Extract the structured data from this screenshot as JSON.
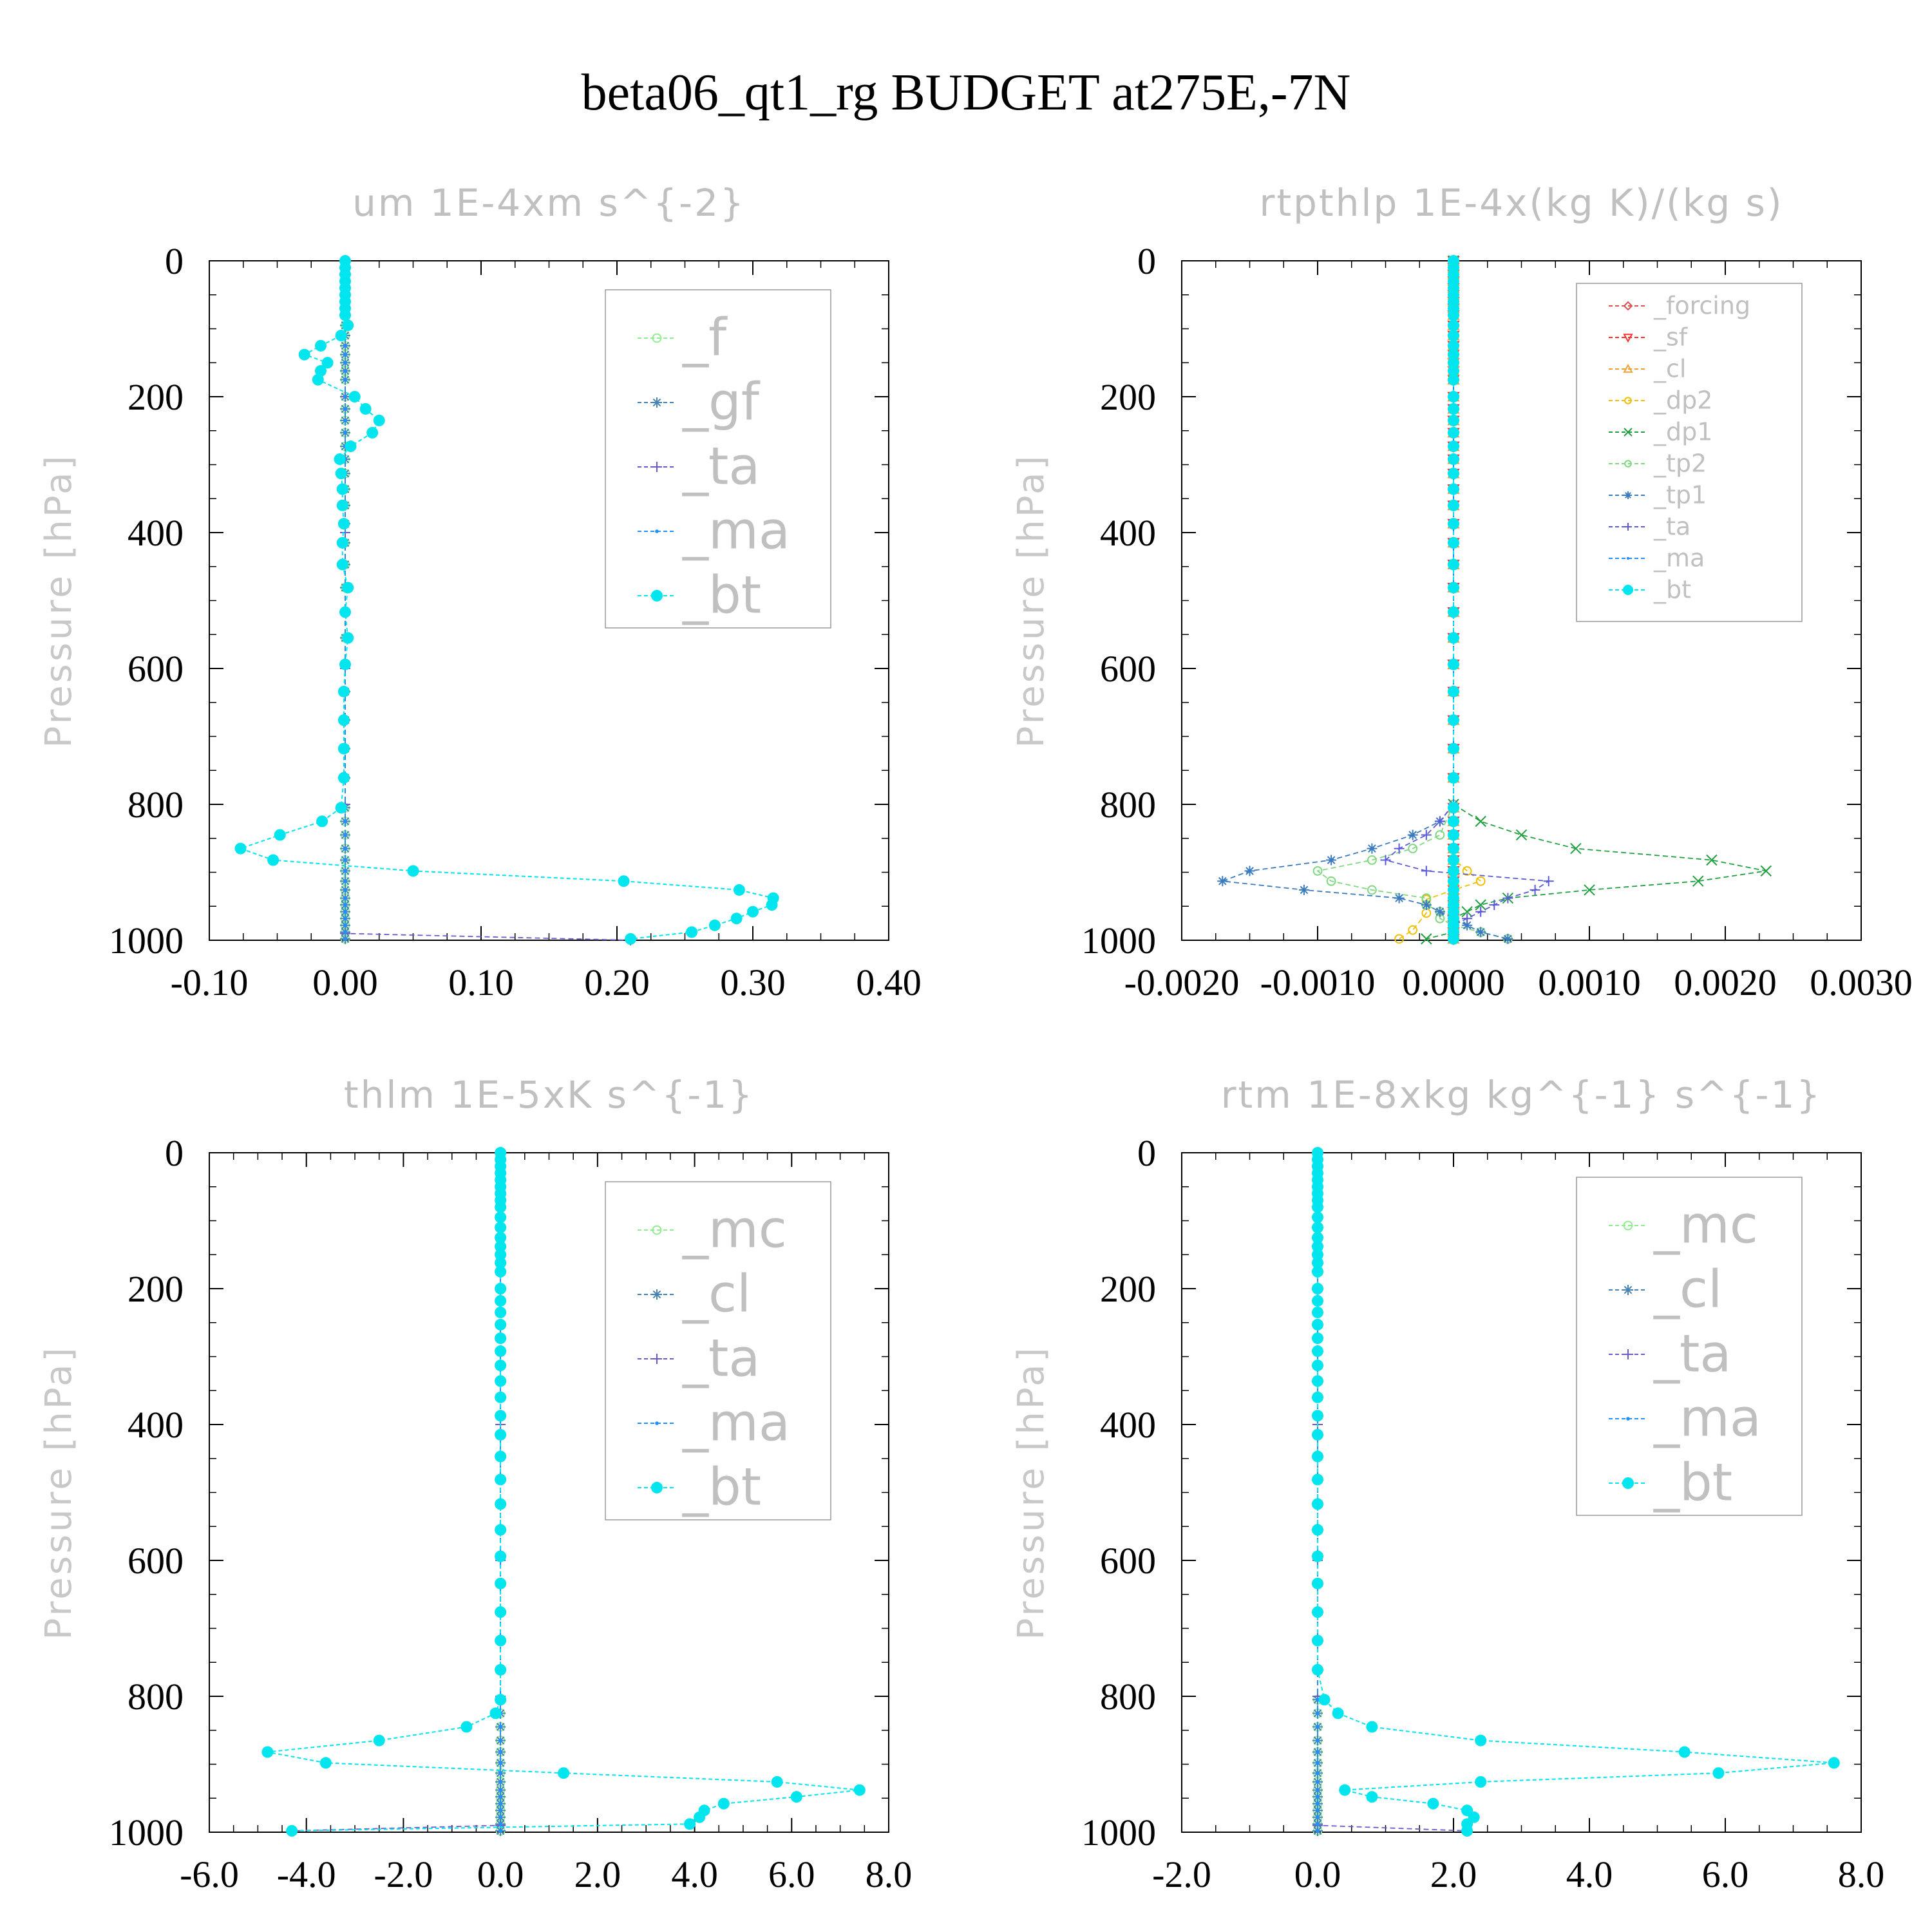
{
  "figure": {
    "title": "beta06_qt1_rg  BUDGET at275E,-7N"
  },
  "chart_data": [
    {
      "type": "line",
      "title": "um  1E-4xm s^{-2}",
      "ylabel": "Pressure [hPa]",
      "xlim": [
        -0.1,
        0.4
      ],
      "ylim": [
        1000,
        0
      ],
      "xticks": [
        "-0.10",
        "0.00",
        "0.10",
        "0.20",
        "0.30",
        "0.40"
      ],
      "yticks": [
        "0",
        "200",
        "400",
        "600",
        "800",
        "1000"
      ],
      "legend": "top-right",
      "series": [
        {
          "name": "_f",
          "color": "#90ee90",
          "marker": "circle",
          "y": [
            0,
            200,
            400,
            600,
            800,
            1000
          ],
          "x": [
            0,
            0,
            0,
            0,
            0,
            0
          ]
        },
        {
          "name": "_gf",
          "color": "#4682b4",
          "marker": "star",
          "y": [
            0,
            200,
            400,
            600,
            800,
            1000
          ],
          "x": [
            0,
            0,
            0,
            0,
            0,
            0
          ]
        },
        {
          "name": "_ta",
          "color": "#6a5acd",
          "marker": "plus",
          "y": [
            0,
            200,
            400,
            600,
            800,
            990,
            1000
          ],
          "x": [
            0,
            0,
            0,
            0,
            0,
            0.0,
            0.21
          ]
        },
        {
          "name": "_ma",
          "color": "#1e90ff",
          "marker": "dot",
          "y": [
            0,
            200,
            400,
            600,
            800,
            1000
          ],
          "x": [
            0,
            0,
            0,
            0,
            0,
            0
          ]
        },
        {
          "name": "_bt",
          "color": "#00e5ee",
          "marker": "bigdot",
          "y": [
            0,
            10,
            20,
            30,
            40,
            50,
            60,
            70,
            80,
            95,
            110,
            125,
            138,
            150,
            162,
            175,
            200,
            218,
            235,
            253,
            273,
            292,
            313,
            336,
            360,
            387,
            415,
            447,
            481,
            517,
            555,
            594,
            634,
            676,
            718,
            761,
            805,
            825,
            845,
            865,
            882,
            898,
            913,
            926,
            938,
            948,
            958,
            968,
            978,
            988,
            998
          ],
          "x": [
            0,
            0,
            0,
            0,
            0,
            0,
            0,
            0,
            0,
            0.002,
            -0.003,
            -0.018,
            -0.03,
            -0.013,
            -0.018,
            -0.02,
            0.007,
            0.015,
            0.025,
            0.02,
            0.004,
            -0.004,
            -0.003,
            -0.002,
            -0.002,
            -0.001,
            -0.002,
            -0.002,
            0.002,
            0.0,
            0.002,
            0.0,
            -0.001,
            -0.001,
            -0.001,
            -0.001,
            -0.003,
            -0.017,
            -0.048,
            -0.077,
            -0.053,
            0.05,
            0.205,
            0.29,
            0.315,
            0.314,
            0.3,
            0.288,
            0.272,
            0.255,
            0.21
          ]
        }
      ]
    },
    {
      "type": "line",
      "title": "rtpthlp  1E-4x(kg K)/(kg s)",
      "ylabel": "Pressure [hPa]",
      "xlim": [
        -0.002,
        0.003
      ],
      "ylim": [
        1000,
        0
      ],
      "xticks": [
        "-0.0020",
        "-0.0010",
        "0.0000",
        "0.0010",
        "0.0020",
        "0.0030"
      ],
      "yticks": [
        "0",
        "200",
        "400",
        "600",
        "800",
        "1000"
      ],
      "legend": "top-right",
      "series": [
        {
          "name": "_forcing",
          "color": "#e05050",
          "marker": "diamond",
          "y": [
            0,
            200,
            400,
            600,
            800,
            1000
          ],
          "x": [
            0,
            0,
            0,
            0,
            0,
            0
          ]
        },
        {
          "name": "_sf",
          "color": "#ff3030",
          "marker": "tridown",
          "y": [
            0,
            200,
            400,
            600,
            800,
            1000
          ],
          "x": [
            0,
            0,
            0,
            0,
            0,
            0
          ]
        },
        {
          "name": "_cl",
          "color": "#f0a030",
          "marker": "triangle",
          "y": [
            0,
            200,
            400,
            600,
            800,
            1000
          ],
          "x": [
            0,
            0,
            0,
            0,
            0,
            0
          ]
        },
        {
          "name": "_dp2",
          "color": "#f0c000",
          "marker": "circle",
          "y": [
            0,
            800,
            880,
            898,
            913,
            926,
            940,
            960,
            985,
            998
          ],
          "x": [
            0,
            0,
            0.0,
            0.0001,
            0.0002,
            0.0,
            -0.0002,
            -0.0002,
            -0.0003,
            -0.0004
          ]
        },
        {
          "name": "_dp1",
          "color": "#20a040",
          "marker": "cross",
          "y": [
            0,
            800,
            825,
            845,
            865,
            882,
            898,
            913,
            926,
            938,
            948,
            958,
            968,
            978,
            988,
            998
          ],
          "x": [
            0,
            0,
            0.0002,
            0.0005,
            0.0009,
            0.0019,
            0.0023,
            0.0018,
            0.001,
            0.0004,
            0.0002,
            0.0001,
            0.0,
            0.0,
            0.0,
            -0.0002
          ]
        },
        {
          "name": "_tp2",
          "color": "#7ed87e",
          "marker": "circle",
          "y": [
            0,
            800,
            845,
            865,
            882,
            898,
            913,
            926,
            938,
            948,
            958,
            968,
            978,
            988,
            998
          ],
          "x": [
            0,
            0,
            -0.0001,
            -0.0003,
            -0.0006,
            -0.001,
            -0.0009,
            -0.0006,
            -0.0002,
            -0.0002,
            -0.0001,
            -0.0001,
            0.0,
            0.0002,
            0.0004
          ]
        },
        {
          "name": "_tp1",
          "color": "#3a7abf",
          "marker": "star",
          "y": [
            0,
            800,
            825,
            845,
            865,
            882,
            898,
            913,
            926,
            938,
            948,
            958,
            968,
            978,
            988,
            998
          ],
          "x": [
            0,
            0,
            -0.0001,
            -0.0003,
            -0.0006,
            -0.0009,
            -0.0015,
            -0.0017,
            -0.0011,
            -0.0004,
            -0.0002,
            -0.0001,
            0.0,
            0.0001,
            0.0002,
            0.0004
          ]
        },
        {
          "name": "_ta",
          "color": "#5a5ad8",
          "marker": "plus",
          "y": [
            0,
            800,
            825,
            845,
            865,
            882,
            898,
            913,
            926,
            938,
            948,
            958,
            968,
            978,
            988,
            998
          ],
          "x": [
            0,
            0,
            -0.0001,
            -0.0002,
            -0.0004,
            -0.0005,
            -0.0002,
            0.0007,
            0.0006,
            0.0004,
            0.0003,
            0.0002,
            0.0001,
            0.0,
            0.0,
            0.0
          ]
        },
        {
          "name": "_ma",
          "color": "#1e90ff",
          "marker": "dot",
          "y": [
            0,
            200,
            400,
            600,
            800,
            1000
          ],
          "x": [
            0,
            0,
            0,
            0,
            0,
            0
          ]
        },
        {
          "name": "_bt",
          "color": "#00e5ee",
          "marker": "bigdot",
          "y": [
            0,
            10,
            20,
            30,
            40,
            50,
            60,
            70,
            80,
            95,
            110,
            125,
            138,
            150,
            162,
            175,
            200,
            218,
            235,
            253,
            273,
            292,
            313,
            336,
            360,
            387,
            415,
            447,
            481,
            517,
            555,
            594,
            634,
            676,
            718,
            761,
            805,
            825,
            845,
            865,
            882,
            898,
            913,
            926,
            938,
            948,
            958,
            968,
            978,
            988,
            998
          ],
          "x": [
            0,
            0,
            0,
            0,
            0,
            0,
            0,
            0,
            0,
            0,
            0,
            0,
            0,
            0,
            0,
            0,
            0,
            0,
            0,
            0,
            0,
            0,
            0,
            0,
            0,
            0,
            0,
            0,
            0,
            0,
            0,
            0,
            0,
            0,
            0,
            0,
            0,
            0,
            0,
            0,
            0,
            0,
            0,
            0,
            0,
            0,
            0,
            0,
            0,
            0,
            0
          ]
        }
      ]
    },
    {
      "type": "line",
      "title": "thlm  1E-5xK s^{-1}",
      "ylabel": "Pressure [hPa]",
      "xlim": [
        -6,
        8
      ],
      "ylim": [
        1000,
        0
      ],
      "xticks": [
        "-6.0",
        "-4.0",
        "-2.0",
        "0.0",
        "2.0",
        "4.0",
        "6.0",
        "8.0"
      ],
      "yticks": [
        "0",
        "200",
        "400",
        "600",
        "800",
        "1000"
      ],
      "legend": "top-right",
      "series": [
        {
          "name": "_mc",
          "color": "#90ee90",
          "marker": "circle",
          "y": [
            0,
            200,
            400,
            600,
            800,
            1000
          ],
          "x": [
            0,
            0,
            0,
            0,
            0,
            0
          ]
        },
        {
          "name": "_cl",
          "color": "#4682b4",
          "marker": "star",
          "y": [
            0,
            200,
            400,
            600,
            800,
            1000
          ],
          "x": [
            0,
            0,
            0,
            0,
            0,
            0
          ]
        },
        {
          "name": "_ta",
          "color": "#6a5acd",
          "marker": "plus",
          "y": [
            0,
            200,
            400,
            600,
            800,
            990,
            998
          ],
          "x": [
            0,
            0,
            0,
            0,
            0,
            0.0,
            -4.3
          ]
        },
        {
          "name": "_ma",
          "color": "#1e90ff",
          "marker": "dot",
          "y": [
            0,
            200,
            400,
            600,
            800,
            1000
          ],
          "x": [
            0,
            0,
            0,
            0,
            0,
            0
          ]
        },
        {
          "name": "_bt",
          "color": "#00e5ee",
          "marker": "bigdot",
          "y": [
            0,
            10,
            20,
            30,
            40,
            50,
            60,
            70,
            80,
            95,
            110,
            125,
            138,
            150,
            162,
            175,
            200,
            218,
            235,
            253,
            273,
            292,
            313,
            336,
            360,
            387,
            415,
            447,
            481,
            517,
            555,
            594,
            634,
            676,
            718,
            761,
            805,
            825,
            845,
            865,
            882,
            898,
            913,
            926,
            938,
            948,
            958,
            968,
            978,
            988,
            998
          ],
          "x": [
            0,
            0,
            0,
            0,
            0,
            0,
            0,
            0,
            0,
            0,
            0,
            0,
            0,
            0,
            0,
            0,
            0,
            0,
            0,
            0,
            0,
            0,
            0,
            0,
            0,
            0,
            0,
            0,
            0,
            0,
            0,
            0,
            0,
            0,
            0,
            0,
            0,
            -0.1,
            -0.7,
            -2.5,
            -4.8,
            -3.6,
            1.3,
            5.7,
            7.4,
            6.1,
            4.6,
            4.2,
            4.1,
            3.9,
            -4.3
          ]
        }
      ]
    },
    {
      "type": "line",
      "title": "rtm  1E-8xkg kg^{-1} s^{-1}",
      "ylabel": "Pressure [hPa]",
      "xlim": [
        -2,
        8
      ],
      "ylim": [
        1000,
        0
      ],
      "xticks": [
        "-2.0",
        "0.0",
        "2.0",
        "4.0",
        "6.0",
        "8.0"
      ],
      "yticks": [
        "0",
        "200",
        "400",
        "600",
        "800",
        "1000"
      ],
      "legend": "top-right",
      "series": [
        {
          "name": "_mc",
          "color": "#90ee90",
          "marker": "circle",
          "y": [
            0,
            200,
            400,
            600,
            800,
            1000
          ],
          "x": [
            0,
            0,
            0,
            0,
            0,
            0
          ]
        },
        {
          "name": "_cl",
          "color": "#4682b4",
          "marker": "star",
          "y": [
            0,
            200,
            400,
            600,
            800,
            1000
          ],
          "x": [
            0,
            0,
            0,
            0,
            0,
            0
          ]
        },
        {
          "name": "_ta",
          "color": "#6a5acd",
          "marker": "plus",
          "y": [
            0,
            200,
            400,
            600,
            800,
            990,
            998
          ],
          "x": [
            0,
            0,
            0,
            0,
            0,
            0.0,
            2.2
          ]
        },
        {
          "name": "_ma",
          "color": "#1e90ff",
          "marker": "dot",
          "y": [
            0,
            200,
            400,
            600,
            800,
            1000
          ],
          "x": [
            0,
            0,
            0,
            0,
            0,
            0
          ]
        },
        {
          "name": "_bt",
          "color": "#00e5ee",
          "marker": "bigdot",
          "y": [
            0,
            10,
            20,
            30,
            40,
            50,
            60,
            70,
            80,
            95,
            110,
            125,
            138,
            150,
            162,
            175,
            200,
            218,
            235,
            253,
            273,
            292,
            313,
            336,
            360,
            387,
            415,
            447,
            481,
            517,
            555,
            594,
            634,
            676,
            718,
            761,
            805,
            825,
            845,
            865,
            882,
            898,
            913,
            926,
            938,
            948,
            958,
            968,
            978,
            988,
            998
          ],
          "x": [
            0,
            0,
            0,
            0,
            0,
            0,
            0,
            0,
            0,
            0,
            0,
            0,
            0,
            0,
            0,
            0,
            0,
            0,
            0,
            0,
            0,
            0,
            0,
            0,
            0,
            0,
            0,
            0,
            0,
            0,
            0,
            0,
            0,
            0,
            0,
            0,
            0.1,
            0.3,
            0.8,
            2.4,
            5.4,
            7.6,
            5.9,
            2.4,
            0.4,
            0.8,
            1.7,
            2.2,
            2.3,
            2.2,
            2.2
          ]
        }
      ]
    }
  ]
}
